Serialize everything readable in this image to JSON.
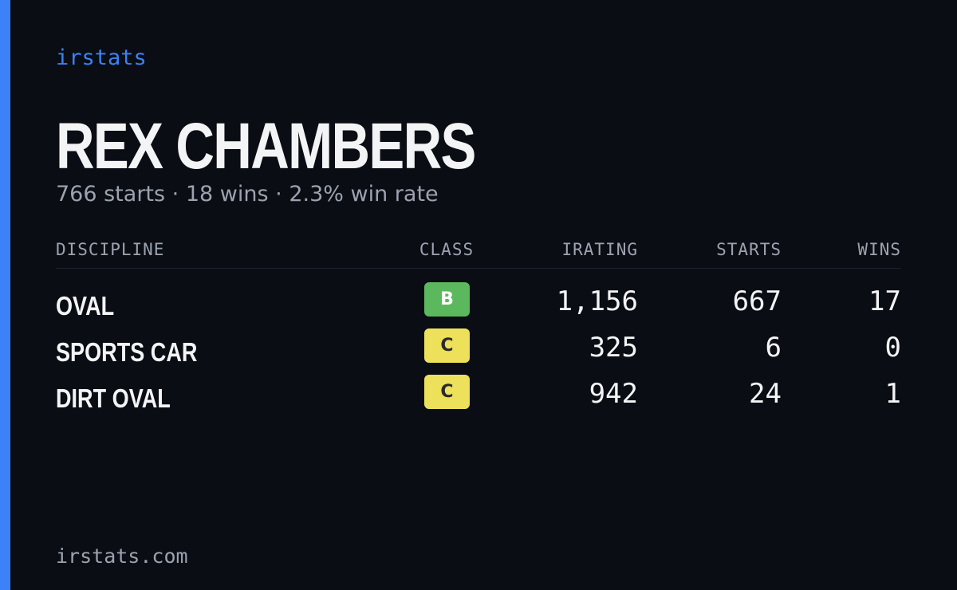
{
  "brand": "irstats",
  "player": {
    "name": "REX CHAMBERS",
    "starts_text": "766 starts",
    "wins_text": "18 wins",
    "win_rate_text": "2.3% win rate",
    "separator": "·"
  },
  "table": {
    "headers": {
      "discipline": "DISCIPLINE",
      "class": "CLASS",
      "irating": "IRATING",
      "starts": "STARTS",
      "wins": "WINS"
    },
    "rows": [
      {
        "discipline": "OVAL",
        "class": "B",
        "class_color": "#5cb85c",
        "class_text_color": "#ffffff",
        "irating": "1,156",
        "starts": "667",
        "wins": "17"
      },
      {
        "discipline": "SPORTS CAR",
        "class": "C",
        "class_color": "#ede05a",
        "class_text_color": "#2a2a2a",
        "irating": "325",
        "starts": "6",
        "wins": "0"
      },
      {
        "discipline": "DIRT OVAL",
        "class": "C",
        "class_color": "#ede05a",
        "class_text_color": "#2a2a2a",
        "irating": "942",
        "starts": "24",
        "wins": "1"
      }
    ]
  },
  "footer": {
    "url": "irstats.com"
  },
  "colors": {
    "accent": "#3b82f6",
    "background": "#0a0d14",
    "text_primary": "#f3f4f6",
    "text_muted": "#9ca3af"
  }
}
